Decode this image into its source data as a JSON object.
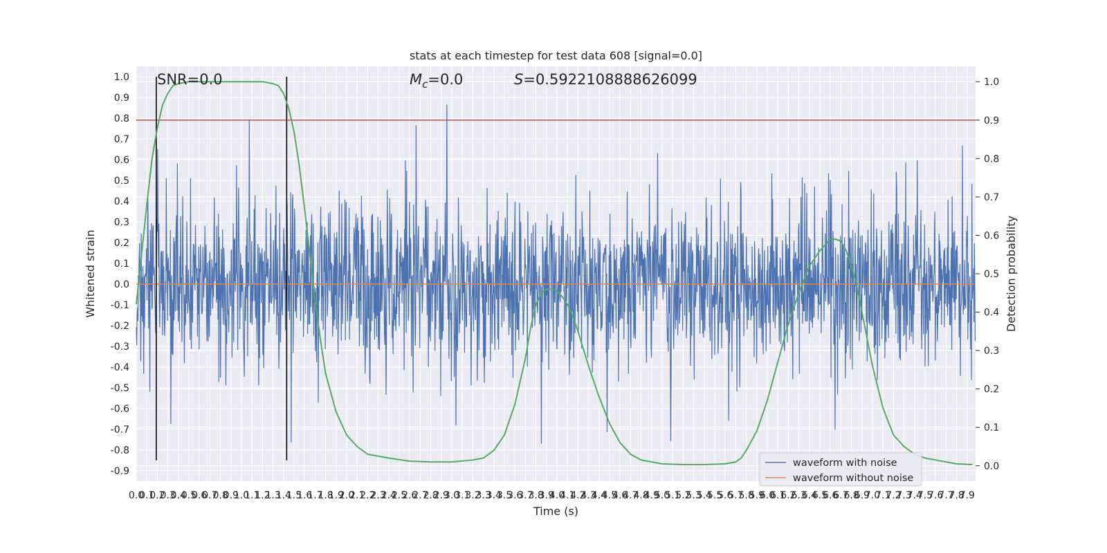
{
  "colors": {
    "background": "#ffffff",
    "plot_background": "#eaeaf2",
    "grid": "#ffffff",
    "noisy_waveform": "#4c72b0",
    "clean_waveform": "#dd8452",
    "detection_probability": "#55a868",
    "threshold": "#c44e52",
    "marker": "#000000",
    "text": "#262626"
  },
  "chart_data": {
    "type": "line",
    "title": "stats at each timestep for test data 608 [signal=0.0]",
    "xlabel": "Time (s)",
    "ylabel": "Whitened strain",
    "ylabel_right": "Detection probability",
    "xlim": [
      0.0,
      7.98
    ],
    "ylim": [
      -0.95,
      1.05
    ],
    "ylim_right": [
      -0.04,
      1.04
    ],
    "x_ticks": [
      "0.0",
      "0.1",
      "0.2",
      "0.3",
      "0.4",
      "0.5",
      "0.6",
      "0.7",
      "0.8",
      "0.9",
      "1.0",
      "1.1",
      "1.2",
      "1.3",
      "1.4",
      "1.5",
      "1.6",
      "1.7",
      "1.8",
      "1.9",
      "2.0",
      "2.1",
      "2.2",
      "2.3",
      "2.4",
      "2.5",
      "2.6",
      "2.7",
      "2.8",
      "2.9",
      "3.0",
      "3.1",
      "3.2",
      "3.3",
      "3.4",
      "3.5",
      "3.6",
      "3.7",
      "3.8",
      "3.9",
      "4.0",
      "4.1",
      "4.2",
      "4.3",
      "4.4",
      "4.5",
      "4.6",
      "4.7",
      "4.8",
      "4.9",
      "5.0",
      "5.1",
      "5.2",
      "5.3",
      "5.4",
      "5.5",
      "5.6",
      "5.7",
      "5.8",
      "5.9",
      "6.0",
      "6.1",
      "6.2",
      "6.3",
      "6.4",
      "6.5",
      "6.6",
      "6.7",
      "6.8",
      "6.9",
      "7.0",
      "7.1",
      "7.2",
      "7.3",
      "7.4",
      "7.5",
      "7.6",
      "7.7",
      "7.8",
      "7.9"
    ],
    "y_ticks": [
      "-0.9",
      "-0.8",
      "-0.7",
      "-0.6",
      "-0.5",
      "-0.4",
      "-0.3",
      "-0.2",
      "-0.1",
      "0.0",
      "0.1",
      "0.2",
      "0.3",
      "0.4",
      "0.5",
      "0.6",
      "0.7",
      "0.8",
      "0.9",
      "1.0"
    ],
    "y_ticks_right": [
      "0.0",
      "0.1",
      "0.2",
      "0.3",
      "0.4",
      "0.5",
      "0.6",
      "0.7",
      "0.8",
      "0.9",
      "1.0"
    ],
    "annotations": {
      "snr": "SNR=0.0",
      "mc_symbol": "M",
      "mc_subscript": "c",
      "mc_value": "=0.0",
      "s_symbol": "S",
      "s_value": "=0.5922108888626099"
    },
    "legend": {
      "position": "lower-right",
      "entries": [
        {
          "label": "waveform with noise",
          "color": "#4c72b0"
        },
        {
          "label": "waveform without noise",
          "color": "#dd8452"
        }
      ]
    },
    "series": [
      {
        "name": "waveform with noise",
        "kind": "noise",
        "sample_rate": 256,
        "band": [
          -0.3,
          0.25
        ],
        "spike_max": 1.0,
        "spike_min": -0.84,
        "seed": 608
      },
      {
        "name": "waveform without noise",
        "kind": "constant",
        "value": 0.0
      },
      {
        "kind": "probability",
        "axis": "right",
        "x": [
          0.0,
          0.05,
          0.1,
          0.15,
          0.2,
          0.25,
          0.3,
          0.35,
          0.4,
          0.5,
          0.6,
          0.8,
          1.0,
          1.2,
          1.3,
          1.35,
          1.4,
          1.45,
          1.5,
          1.55,
          1.6,
          1.65,
          1.7,
          1.75,
          1.8,
          1.9,
          2.0,
          2.1,
          2.2,
          2.4,
          2.6,
          2.8,
          3.0,
          3.2,
          3.3,
          3.4,
          3.5,
          3.6,
          3.7,
          3.75,
          3.8,
          3.85,
          3.9,
          3.95,
          4.0,
          4.05,
          4.1,
          4.15,
          4.2,
          4.3,
          4.4,
          4.5,
          4.6,
          4.7,
          4.8,
          4.9,
          5.0,
          5.2,
          5.4,
          5.6,
          5.7,
          5.75,
          5.8,
          5.9,
          6.0,
          6.1,
          6.2,
          6.3,
          6.4,
          6.5,
          6.6,
          6.65,
          6.7,
          6.75,
          6.8,
          6.85,
          6.9,
          7.0,
          7.1,
          7.2,
          7.3,
          7.4,
          7.5,
          7.6,
          7.7,
          7.8,
          7.95
        ],
        "y": [
          0.42,
          0.55,
          0.68,
          0.8,
          0.88,
          0.94,
          0.97,
          0.99,
          0.995,
          1.0,
          1.0,
          1.0,
          1.0,
          1.0,
          0.995,
          0.99,
          0.97,
          0.93,
          0.87,
          0.78,
          0.67,
          0.55,
          0.43,
          0.33,
          0.24,
          0.14,
          0.08,
          0.05,
          0.03,
          0.02,
          0.012,
          0.01,
          0.01,
          0.015,
          0.02,
          0.04,
          0.08,
          0.16,
          0.28,
          0.36,
          0.42,
          0.45,
          0.46,
          0.46,
          0.455,
          0.44,
          0.42,
          0.39,
          0.35,
          0.26,
          0.18,
          0.11,
          0.06,
          0.03,
          0.015,
          0.01,
          0.005,
          0.003,
          0.003,
          0.005,
          0.01,
          0.02,
          0.04,
          0.09,
          0.17,
          0.27,
          0.37,
          0.45,
          0.52,
          0.56,
          0.59,
          0.59,
          0.585,
          0.56,
          0.52,
          0.47,
          0.4,
          0.26,
          0.15,
          0.08,
          0.05,
          0.03,
          0.02,
          0.015,
          0.01,
          0.005,
          0.003
        ]
      },
      {
        "kind": "threshold",
        "axis": "right",
        "value": 0.9
      },
      {
        "kind": "marker",
        "x": [
          0.19,
          1.43
        ],
        "y_range": [
          -0.85,
          1.0
        ]
      }
    ]
  }
}
